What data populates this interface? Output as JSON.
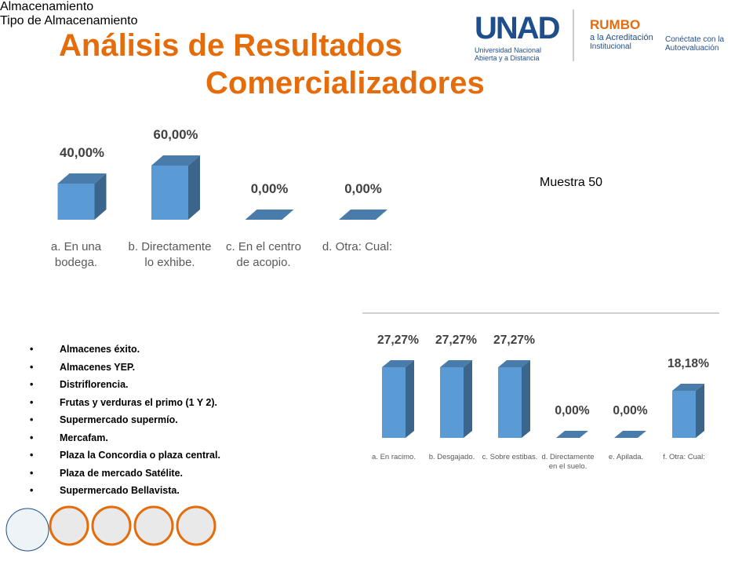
{
  "header": {
    "title_line1": "Análisis de Resultados",
    "title_line2": "Comercializadores",
    "logo_unad": "UNAD",
    "logo_unad_sub1": "Universidad Nacional",
    "logo_unad_sub2": "Abierta y a Distancia",
    "logo_rumbo": "RUMBO",
    "logo_rumbo_sub1": "a la Acreditación",
    "logo_rumbo_sub2": "Institucional",
    "logo_conectate1": "Conéctate con la",
    "logo_conectate2": "Autoevaluación"
  },
  "sample_note": "Muestra 50",
  "list": [
    "Almacenes éxito.",
    "Almacenes YEP.",
    "Distriflorencia.",
    "Frutas y verduras el primo (1 Y 2).",
    "Supermercado supermío.",
    "Mercafam.",
    "Plaza la Concordia o plaza central.",
    "Plaza de mercado Satélite.",
    "Supermercado Bellavista."
  ],
  "chart_data": [
    {
      "type": "bar",
      "title": "Almacenamiento",
      "color": "#5b9bd5",
      "categories": [
        "a. En una bodega.",
        "b. Directamente lo exhibe.",
        "c. En el centro de acopio.",
        "d. Otra: Cual:"
      ],
      "values": [
        40,
        60,
        0,
        0
      ],
      "value_labels": [
        "40,00%",
        "60,00%",
        "0,00%",
        "0,00%"
      ]
    },
    {
      "type": "bar",
      "title": "Tipo de Almacenamiento",
      "color": "#5b9bd5",
      "categories": [
        "a. En racimo.",
        "b. Desgajado.",
        "c. Sobre estibas.",
        "d. Directamente en el suelo.",
        "e. Apilada.",
        "f. Otra: Cual:"
      ],
      "values": [
        27.27,
        27.27,
        27.27,
        0,
        0,
        18.18
      ],
      "value_labels": [
        "27,27%",
        "27,27%",
        "27,27%",
        "0,00%",
        "0,00%",
        "18,18%"
      ]
    }
  ]
}
